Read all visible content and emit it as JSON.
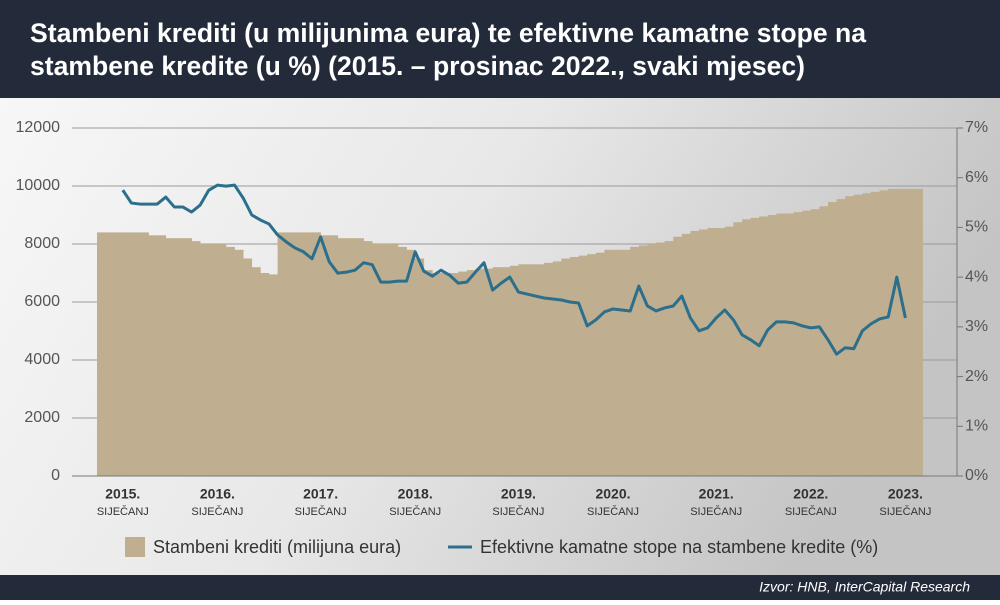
{
  "chart_data": {
    "type": "bar_line",
    "title": [
      "Stambeni krediti (u milijunima eura) te efektivne kamatne stope na",
      "stambene kredite (u %) (2015. – prosinac 2022., svaki mjesec)"
    ],
    "source": "Izvor: HNB, InterCapital Research",
    "categories": [
      null,
      null,
      null,
      "2015.",
      null,
      null,
      null,
      null,
      null,
      null,
      null,
      null,
      null,
      null,
      "2016.",
      null,
      null,
      null,
      null,
      null,
      null,
      null,
      null,
      null,
      null,
      null,
      "2017.",
      null,
      null,
      null,
      null,
      null,
      null,
      null,
      null,
      null,
      null,
      "2018.",
      null,
      null,
      null,
      null,
      null,
      null,
      null,
      null,
      null,
      null,
      null,
      "2019.",
      null,
      null,
      null,
      null,
      null,
      null,
      null,
      null,
      null,
      null,
      "2020.",
      null,
      null,
      null,
      null,
      null,
      null,
      null,
      null,
      null,
      null,
      null,
      "2021.",
      null,
      null,
      null,
      null,
      null,
      null,
      null,
      null,
      null,
      null,
      "2022.",
      null,
      null,
      null,
      null,
      null,
      null,
      null,
      null,
      null,
      null,
      "2023.",
      null
    ],
    "category_sublabels": [
      null,
      null,
      null,
      "SIJEČANJ",
      null,
      null,
      null,
      null,
      null,
      null,
      null,
      null,
      null,
      null,
      "SIJEČANJ",
      null,
      null,
      null,
      null,
      null,
      null,
      null,
      null,
      null,
      null,
      null,
      "SIJEČANJ",
      null,
      null,
      null,
      null,
      null,
      null,
      null,
      null,
      null,
      null,
      "SIJEČANJ",
      null,
      null,
      null,
      null,
      null,
      null,
      null,
      null,
      null,
      null,
      null,
      "SIJEČANJ",
      null,
      null,
      null,
      null,
      null,
      null,
      null,
      null,
      null,
      null,
      "SIJEČANJ",
      null,
      null,
      null,
      null,
      null,
      null,
      null,
      null,
      null,
      null,
      null,
      "SIJEČANJ",
      null,
      null,
      null,
      null,
      null,
      null,
      null,
      null,
      null,
      null,
      "SIJEČANJ",
      null,
      null,
      null,
      null,
      null,
      null,
      null,
      null,
      null,
      null,
      "SIJEČANJ",
      null
    ],
    "series": [
      {
        "name": "Stambeni krediti (milijuna eura)",
        "type": "bar",
        "color": "#bfae8f",
        "values": [
          8400,
          8400,
          8400,
          8400,
          8400,
          8400,
          8300,
          8300,
          8200,
          8200,
          8200,
          8100,
          8000,
          8000,
          8000,
          7900,
          7800,
          7500,
          7200,
          7000,
          6950,
          8400,
          8400,
          8400,
          8400,
          8400,
          8300,
          8300,
          8200,
          8200,
          8200,
          8100,
          8000,
          8000,
          8000,
          7900,
          7800,
          7500,
          7100,
          7000,
          7000,
          7000,
          7050,
          7100,
          7150,
          7150,
          7200,
          7200,
          7250,
          7300,
          7300,
          7300,
          7350,
          7400,
          7500,
          7550,
          7600,
          7650,
          7700,
          7800,
          7800,
          7800,
          7900,
          7950,
          8000,
          8050,
          8100,
          8250,
          8350,
          8450,
          8500,
          8550,
          8550,
          8600,
          8750,
          8850,
          8900,
          8950,
          9000,
          9050,
          9050,
          9100,
          9150,
          9200,
          9300,
          9450,
          9550,
          9650,
          9700,
          9750,
          9800,
          9850,
          9900,
          9900,
          9900,
          9900
        ]
      },
      {
        "name": "Efektivne kamatne stope na stambene kredite (%)",
        "type": "line",
        "axis": "y2",
        "color": "#2b6f8c",
        "values": [
          null,
          null,
          null,
          5.75,
          5.49,
          5.47,
          5.47,
          5.47,
          5.61,
          5.41,
          5.41,
          5.31,
          5.45,
          5.75,
          5.85,
          5.83,
          5.85,
          5.59,
          5.25,
          5.15,
          5.07,
          4.85,
          4.71,
          4.59,
          4.51,
          4.37,
          4.81,
          4.31,
          4.08,
          4.1,
          4.14,
          4.29,
          4.25,
          3.9,
          3.9,
          3.92,
          3.92,
          4.51,
          4.12,
          4.02,
          4.14,
          4.04,
          3.88,
          3.9,
          4.1,
          4.29,
          3.74,
          3.88,
          4.0,
          3.7,
          3.66,
          3.62,
          3.58,
          3.56,
          3.54,
          3.5,
          3.48,
          3.02,
          3.14,
          3.3,
          3.36,
          3.34,
          3.32,
          3.82,
          3.42,
          3.32,
          3.38,
          3.42,
          3.62,
          3.18,
          2.92,
          2.98,
          3.18,
          3.34,
          3.14,
          2.84,
          2.74,
          2.62,
          2.94,
          3.1,
          3.1,
          3.08,
          3.02,
          2.98,
          3.0,
          2.74,
          2.45,
          2.58,
          2.56,
          2.92,
          3.06,
          3.16,
          3.2,
          4.0,
          3.18,
          null
        ]
      }
    ],
    "ylim": [
      0,
      12000
    ],
    "yticks": [
      0,
      2000,
      4000,
      6000,
      8000,
      10000,
      12000
    ],
    "y2lim": [
      0,
      7
    ],
    "y2ticks": [
      {
        "value": 0,
        "label": "0%"
      },
      {
        "value": 1,
        "label": "1%"
      },
      {
        "value": 2,
        "label": "2%"
      },
      {
        "value": 3,
        "label": "3%"
      },
      {
        "value": 4,
        "label": "4%"
      },
      {
        "value": 5,
        "label": "5%"
      },
      {
        "value": 6,
        "label": "6%"
      },
      {
        "value": 7,
        "label": "7%"
      }
    ],
    "grid": true
  }
}
